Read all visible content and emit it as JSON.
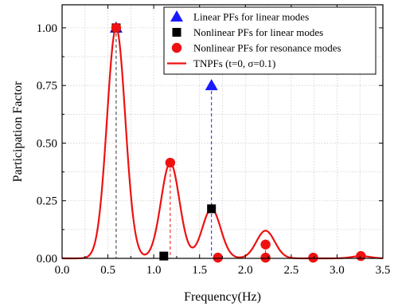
{
  "chart_data": {
    "type": "line",
    "xlabel": "Frequency(Hz)",
    "ylabel": "Participation Factor",
    "xlim": [
      0.0,
      3.5
    ],
    "ylim": [
      0.0,
      1.1
    ],
    "x_ticks": [
      "0.0",
      "0.5",
      "1.0",
      "1.5",
      "2.0",
      "2.5",
      "3.0",
      "3.5"
    ],
    "y_ticks": [
      "0.00",
      "0.25",
      "0.50",
      "0.75",
      "1.00"
    ],
    "grid": true,
    "legend_position": "top-right",
    "series": [
      {
        "name": "Linear PFs for linear modes",
        "kind": "scatter",
        "marker": "triangle",
        "color": "#1a1aff",
        "points": [
          {
            "x": 0.59,
            "y": 1.0
          },
          {
            "x": 1.63,
            "y": 0.75
          }
        ]
      },
      {
        "name": "Nonlinear PFs for linear modes",
        "kind": "scatter",
        "marker": "square",
        "color": "#000000",
        "points": [
          {
            "x": 0.59,
            "y": 1.0
          },
          {
            "x": 1.11,
            "y": 0.01
          },
          {
            "x": 1.63,
            "y": 0.215
          }
        ]
      },
      {
        "name": "Nonlinear PFs for resonance modes",
        "kind": "scatter",
        "marker": "circle",
        "color": "#ee1111",
        "points": [
          {
            "x": 0.59,
            "y": 1.0
          },
          {
            "x": 1.18,
            "y": 0.415
          },
          {
            "x": 1.7,
            "y": 0.003
          },
          {
            "x": 2.22,
            "y": 0.06
          },
          {
            "x": 2.22,
            "y": 0.003
          },
          {
            "x": 2.74,
            "y": 0.003
          },
          {
            "x": 3.26,
            "y": 0.01
          }
        ]
      },
      {
        "name": "TNPFs (t=0, σ=0.1)",
        "kind": "line",
        "color": "#ee1111",
        "peaks": [
          {
            "x": 0.59,
            "y": 1.0
          },
          {
            "x": 1.18,
            "y": 0.415
          },
          {
            "x": 1.63,
            "y": 0.215
          },
          {
            "x": 2.22,
            "y": 0.12
          },
          {
            "x": 3.26,
            "y": 0.01
          }
        ],
        "sigma": 0.1
      }
    ],
    "drop_lines": [
      {
        "x": 0.59,
        "y": 1.0,
        "color": "#333333"
      },
      {
        "x": 1.18,
        "y": 0.415,
        "color": "#ee1111"
      },
      {
        "x": 1.63,
        "y": 0.75,
        "color": "#1a1aff"
      },
      {
        "x": 2.22,
        "y": 0.06,
        "color": "#ee1111"
      }
    ]
  }
}
